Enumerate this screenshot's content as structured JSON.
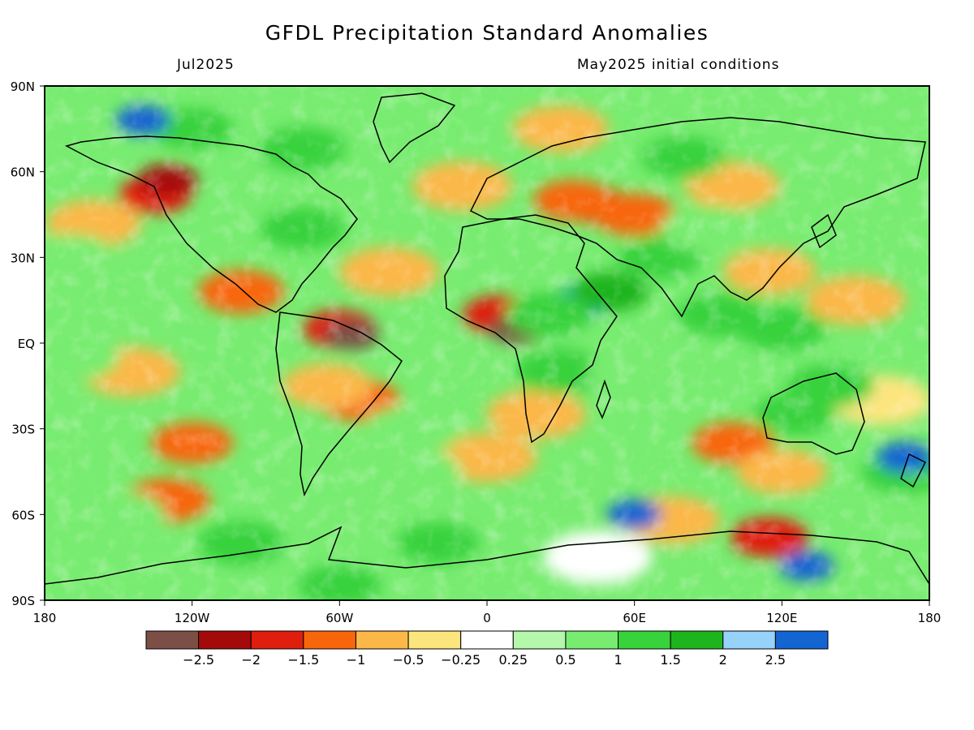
{
  "title": "GFDL Precipitation Standard Anomalies",
  "subtitle_left": "Jul2025",
  "subtitle_right": "May2025 initial conditions",
  "lat_labels": [
    "90N",
    "60N",
    "30N",
    "EQ",
    "30S",
    "60S",
    "90S"
  ],
  "lon_labels": [
    "180",
    "120W",
    "60W",
    "0",
    "60E",
    "120E",
    "180"
  ],
  "colorbar": {
    "labels": [
      "−2.5",
      "−2",
      "−1.5",
      "−1",
      "−0.5",
      "−0.25",
      "0.25",
      "0.5",
      "1",
      "1.5",
      "2",
      "2.5"
    ],
    "colors": [
      "#7b4f45",
      "#a50a0a",
      "#e01e0e",
      "#f8660c",
      "#fbb849",
      "#fde57e",
      "#ffffff",
      "#b4f8ab",
      "#78ec70",
      "#37d23c",
      "#1eb41e",
      "#96d2fa",
      "#1464d2"
    ]
  },
  "map_info": {
    "type": "global precipitation standardized anomaly map",
    "projection": "cylindrical equidistant",
    "lon_range": [
      -180,
      180
    ],
    "lat_range": [
      -90,
      90
    ],
    "regions": [
      {
        "lon": -135,
        "lat": 52,
        "value": -1.8
      },
      {
        "lon": -130,
        "lat": 57,
        "value": -2.4
      },
      {
        "lon": -160,
        "lat": 42,
        "value": -0.8
      },
      {
        "lon": -100,
        "lat": 18,
        "value": -1.2
      },
      {
        "lon": -60,
        "lat": 5,
        "value": -1.8
      },
      {
        "lon": -55,
        "lat": 3,
        "value": -2.6
      },
      {
        "lon": -52,
        "lat": -20,
        "value": -1.4
      },
      {
        "lon": -65,
        "lat": -15,
        "value": -1.0
      },
      {
        "lon": -145,
        "lat": -10,
        "value": -0.6
      },
      {
        "lon": -120,
        "lat": -35,
        "value": -1.4
      },
      {
        "lon": -130,
        "lat": -55,
        "value": -1.2
      },
      {
        "lon": -40,
        "lat": 25,
        "value": -0.6
      },
      {
        "lon": 5,
        "lat": 10,
        "value": -1.8
      },
      {
        "lon": 12,
        "lat": 5,
        "value": -2.6
      },
      {
        "lon": 20,
        "lat": -25,
        "value": -0.6
      },
      {
        "lon": 45,
        "lat": 48,
        "value": -2.0
      },
      {
        "lon": 35,
        "lat": 50,
        "value": -1.5
      },
      {
        "lon": 60,
        "lat": 45,
        "value": -1.3
      },
      {
        "lon": 30,
        "lat": 75,
        "value": -0.8
      },
      {
        "lon": 100,
        "lat": 55,
        "value": -0.8
      },
      {
        "lon": 115,
        "lat": 25,
        "value": -0.9
      },
      {
        "lon": 150,
        "lat": 15,
        "value": -0.6
      },
      {
        "lon": 100,
        "lat": -35,
        "value": -1.4
      },
      {
        "lon": 120,
        "lat": -45,
        "value": -1.0
      },
      {
        "lon": 115,
        "lat": -68,
        "value": -1.6
      },
      {
        "lon": 75,
        "lat": -62,
        "value": -0.7
      },
      {
        "lon": -10,
        "lat": 55,
        "value": -0.6
      },
      {
        "lon": 160,
        "lat": -20,
        "value": -0.5
      },
      {
        "lon": 0,
        "lat": -40,
        "value": -0.6
      },
      {
        "lon": -120,
        "lat": 75,
        "value": 1.4
      },
      {
        "lon": -140,
        "lat": 78,
        "value": 2.6
      },
      {
        "lon": -75,
        "lat": 68,
        "value": 1.2
      },
      {
        "lon": -75,
        "lat": 40,
        "value": 1.3
      },
      {
        "lon": -170,
        "lat": 30,
        "value": 0.8
      },
      {
        "lon": -170,
        "lat": -5,
        "value": 0.6
      },
      {
        "lon": -150,
        "lat": -60,
        "value": 0.8
      },
      {
        "lon": -100,
        "lat": -70,
        "value": 1.2
      },
      {
        "lon": -30,
        "lat": -45,
        "value": 0.8
      },
      {
        "lon": -30,
        "lat": -30,
        "value": 0.6
      },
      {
        "lon": 40,
        "lat": 15,
        "value": 2.6
      },
      {
        "lon": 50,
        "lat": 18,
        "value": 1.6
      },
      {
        "lon": 25,
        "lat": 10,
        "value": 1.2
      },
      {
        "lon": 30,
        "lat": -10,
        "value": 1.0
      },
      {
        "lon": 70,
        "lat": 30,
        "value": 1.2
      },
      {
        "lon": 90,
        "lat": 40,
        "value": 0.8
      },
      {
        "lon": 80,
        "lat": 65,
        "value": 1.3
      },
      {
        "lon": 125,
        "lat": -25,
        "value": 1.4
      },
      {
        "lon": 140,
        "lat": -15,
        "value": 1.2
      },
      {
        "lon": 170,
        "lat": -45,
        "value": 1.2
      },
      {
        "lon": 170,
        "lat": -40,
        "value": 2.5
      },
      {
        "lon": 60,
        "lat": -10,
        "value": 0.8
      },
      {
        "lon": 120,
        "lat": 5,
        "value": 1.1
      },
      {
        "lon": 60,
        "lat": -60,
        "value": 2.6
      },
      {
        "lon": 130,
        "lat": -78,
        "value": 2.6
      },
      {
        "lon": 45,
        "lat": -75,
        "value": 0.2
      },
      {
        "lon": -20,
        "lat": -70,
        "value": 1.4
      },
      {
        "lon": -60,
        "lat": -85,
        "value": 1.4
      },
      {
        "lon": 170,
        "lat": 65,
        "value": 0.9
      },
      {
        "lon": 95,
        "lat": 10,
        "value": 1.2
      },
      {
        "lon": -10,
        "lat": 80,
        "value": 0.9
      }
    ]
  }
}
